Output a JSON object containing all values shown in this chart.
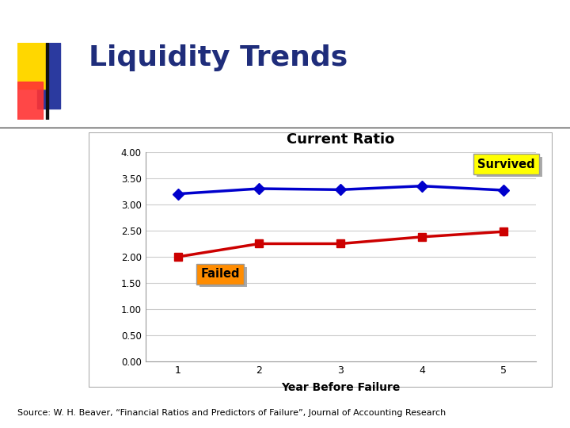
{
  "title": "Liquidity Trends",
  "chart_title": "Current Ratio",
  "xlabel": "Year Before Failure",
  "x_values": [
    1,
    2,
    3,
    4,
    5
  ],
  "survived_values": [
    3.2,
    3.3,
    3.28,
    3.35,
    3.27
  ],
  "failed_values": [
    2.0,
    2.25,
    2.25,
    2.38,
    2.48
  ],
  "ylim": [
    0.0,
    4.0
  ],
  "yticks": [
    0.0,
    0.5,
    1.0,
    1.5,
    2.0,
    2.5,
    3.0,
    3.5,
    4.0
  ],
  "survived_color": "#0000CC",
  "failed_color": "#CC0000",
  "survived_label": "Survived",
  "failed_label": "Failed",
  "survived_label_bg": "#FFFF00",
  "failed_label_bg": "#FF8C00",
  "background_color": "#FFFFFF",
  "plot_bg_color": "#FFFFFF",
  "source_text": "Source: W. H. Beaver, “Financial Ratios and Predictors of Failure”, Journal of Accounting Research",
  "title_color": "#1F2D7B",
  "title_fontsize": 26,
  "chart_title_fontsize": 13,
  "deco_yellow": "#FFD700",
  "deco_red": "#FF3333",
  "deco_blue": "#2B3A9F",
  "frame_color": "#AAAAAA",
  "grid_color": "#CCCCCC"
}
